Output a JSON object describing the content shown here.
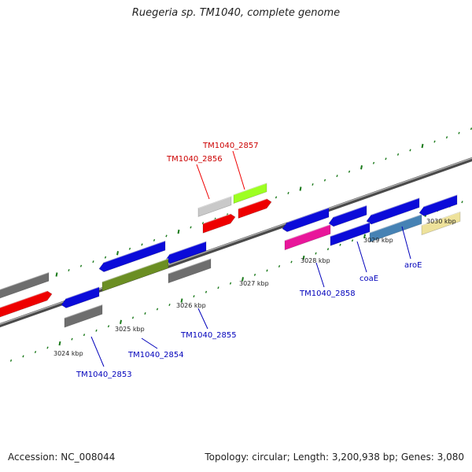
{
  "title": "Ruegeria sp. TM1040, complete genome",
  "footer": {
    "accession_label": "Accession:",
    "accession_value": "NC_008044",
    "topology_label": "Topology:",
    "topology_value": "circular",
    "length_label": "Length:",
    "length_value": "3,200,938 bp",
    "genes_label": "Genes:",
    "genes_value": "3,080"
  },
  "colors": {
    "blue": "#0b0bd9",
    "red": "#ee0000",
    "gray": "#6e6e6e",
    "lightgray": "#c9c9c9",
    "olive": "#6b8e23",
    "magenta": "#e8169a",
    "steelblue": "#4682b4",
    "khaki": "#eee29b",
    "lime": "#9dff21",
    "label_blue": "#0000bb",
    "label_red": "#cc0000",
    "tick_green": "#1b7a1b",
    "backbone": "#8c8c8c"
  },
  "scale_labels": [
    "3024 kbp",
    "3025 kbp",
    "3026 kbp",
    "3027 kbp",
    "3028 kbp",
    "3029 kbp",
    "3030 kbp"
  ],
  "gene_labels": [
    {
      "text": "TM1040_2857",
      "color": "red"
    },
    {
      "text": "TM1040_2856",
      "color": "red"
    },
    {
      "text": "TM1040_2853",
      "color": "blue"
    },
    {
      "text": "TM1040_2854",
      "color": "blue"
    },
    {
      "text": "TM1040_2855",
      "color": "blue"
    },
    {
      "text": "TM1040_2858",
      "color": "blue"
    },
    {
      "text": "coaE",
      "color": "blue"
    },
    {
      "text": "aroE",
      "color": "blue"
    }
  ]
}
